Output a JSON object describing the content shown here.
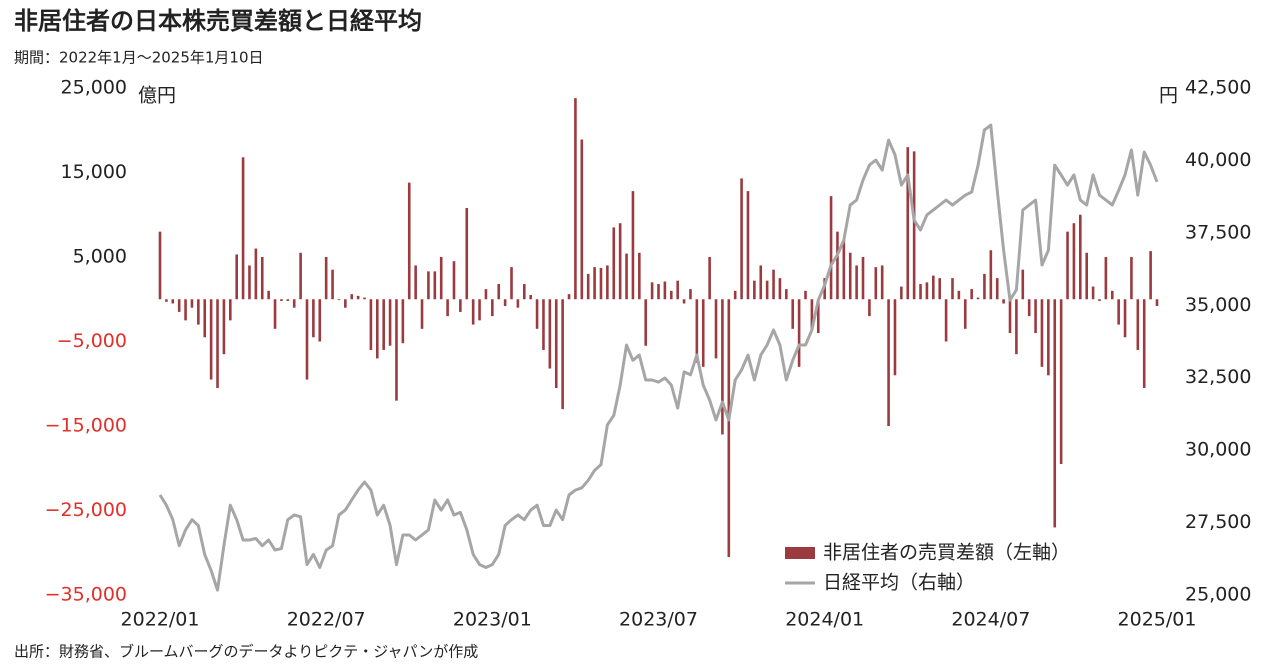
{
  "chart_data": {
    "type": "combo",
    "title": "非居住者の日本株売買差額と日経平均",
    "subtitle": "期間：2022年1月～2025年1月10日",
    "source": "出所：財務省、ブルームバーグのデータよりピクテ・ジャパンが作成",
    "y_unit": "億円",
    "y2_unit": "円",
    "categories": [
      null,
      null,
      null,
      null,
      null,
      null,
      null,
      null,
      null,
      null,
      null,
      null,
      null,
      null,
      null,
      null,
      null,
      null,
      null,
      null,
      null,
      null,
      null,
      null,
      null,
      null,
      null,
      null,
      null,
      null,
      null,
      null,
      null,
      null,
      null,
      null,
      null,
      null,
      null,
      null,
      null,
      null,
      null,
      null,
      null,
      null,
      null,
      null,
      null,
      null,
      null,
      null,
      null,
      null,
      null,
      null,
      null,
      null,
      null,
      null,
      null,
      null,
      null,
      null,
      null,
      null,
      null,
      null,
      null,
      null,
      null,
      null,
      null,
      null,
      null,
      null,
      null,
      null,
      null,
      null,
      null,
      null,
      null,
      null,
      null,
      null,
      null,
      null,
      null,
      null,
      null,
      null,
      null,
      null,
      null,
      null,
      null,
      null,
      null,
      null,
      null,
      null,
      null,
      null,
      null,
      null,
      null,
      null,
      null,
      null,
      null,
      null,
      null,
      null,
      null,
      null,
      null,
      null,
      null,
      null,
      null,
      null,
      null,
      null,
      null,
      null,
      null,
      null,
      null,
      null,
      null,
      null,
      null,
      null,
      null,
      null,
      null,
      null,
      null,
      null,
      null,
      null,
      null,
      null,
      null,
      null,
      null,
      null,
      null,
      null,
      null,
      null,
      null,
      null,
      null,
      null,
      null
    ],
    "xticks": [
      {
        "value": 0,
        "label": "2022/01"
      },
      {
        "value": 26,
        "label": "2022/07"
      },
      {
        "value": 52,
        "label": "2023/01"
      },
      {
        "value": 78,
        "label": "2023/07"
      },
      {
        "value": 104,
        "label": "2024/01"
      },
      {
        "value": 130,
        "label": "2024/07"
      },
      {
        "value": 156,
        "label": "2025/01"
      }
    ],
    "ylim": [
      -35000,
      25000
    ],
    "yticks": [
      {
        "value": 25000,
        "label": "25,000"
      },
      {
        "value": 15000,
        "label": "15,000"
      },
      {
        "value": 5000,
        "label": "5,000"
      },
      {
        "value": -5000,
        "label": "−5,000"
      },
      {
        "value": -15000,
        "label": "−15,000"
      },
      {
        "value": -25000,
        "label": "−25,000"
      },
      {
        "value": -35000,
        "label": "−35,000"
      }
    ],
    "negative_tick_color": "#e0302a",
    "y2lim": [
      25000,
      42500
    ],
    "y2ticks": [
      {
        "value": 42500,
        "label": "42,500"
      },
      {
        "value": 40000,
        "label": "40,000"
      },
      {
        "value": 37500,
        "label": "37,500"
      },
      {
        "value": 35000,
        "label": "35,000"
      },
      {
        "value": 32500,
        "label": "32,500"
      },
      {
        "value": 30000,
        "label": "30,000"
      },
      {
        "value": 27500,
        "label": "27,500"
      },
      {
        "value": 25000,
        "label": "25,000"
      }
    ],
    "legend": "lower right",
    "series": [
      {
        "name": "非居住者の売買差額（左軸）",
        "type": "bar",
        "color": "#9b3b3f",
        "values": [
          8000,
          -300,
          -500,
          -1500,
          -2500,
          -1000,
          -3000,
          -4500,
          -9500,
          -10500,
          -6500,
          -2500,
          5300,
          16800,
          4000,
          6000,
          5000,
          1000,
          -3500,
          -200,
          -200,
          -1000,
          5500,
          -9500,
          -4500,
          -5000,
          5000,
          3500,
          -100,
          -1000,
          600,
          400,
          200,
          -6000,
          -7000,
          -6000,
          -5500,
          -12000,
          -5200,
          13800,
          4000,
          -3500,
          3300,
          3300,
          5000,
          -2000,
          4500,
          -1500,
          10800,
          -3000,
          -2500,
          1200,
          -2000,
          1800,
          -800,
          3800,
          -1000,
          1800,
          500,
          -3500,
          -6000,
          -8200,
          -10500,
          -13000,
          600,
          23800,
          18900,
          3000,
          3800,
          3700,
          4000,
          8500,
          9000,
          5400,
          12800,
          5500,
          -5500,
          2000,
          1800,
          2100,
          1000,
          2200,
          -500,
          1200,
          -7500,
          -8000,
          5000,
          -7000,
          -16000,
          -30500,
          1000,
          14300,
          12800,
          2200,
          4000,
          2200,
          3500,
          2500,
          1200,
          -3500,
          -8000,
          1000,
          -3500,
          -4000,
          2500,
          12200,
          8000,
          7000,
          5500,
          4000,
          5000,
          -2000,
          3800,
          4000,
          -15000,
          -9000,
          1500,
          18000,
          17500,
          1800,
          2000,
          2800,
          2500,
          -5000,
          2500,
          1000,
          -3500,
          1200,
          200,
          3000,
          5800,
          2500,
          -500,
          -4000,
          -6500,
          3500,
          -2000,
          -4000,
          -8000,
          -9000,
          -27000,
          -19500,
          8000,
          9000,
          10000,
          5500,
          1500,
          -200,
          5000,
          1000,
          -3000,
          -4500,
          5000,
          -6000,
          -10500,
          5700,
          -800
        ]
      },
      {
        "name": "日経平均（右軸）",
        "type": "line",
        "axis": "y2",
        "color": "#a6a6a6",
        "values": [
          28450,
          28100,
          27600,
          26700,
          27250,
          27600,
          27400,
          26400,
          25850,
          25170,
          26700,
          28100,
          27600,
          26900,
          26900,
          26950,
          26700,
          26900,
          26550,
          26600,
          27600,
          27760,
          27700,
          26050,
          26400,
          25950,
          26550,
          26700,
          27760,
          27930,
          28280,
          28620,
          28900,
          28620,
          27760,
          28100,
          27400,
          26050,
          27070,
          27070,
          26900,
          27070,
          27250,
          28280,
          27930,
          28280,
          27760,
          27850,
          27250,
          26400,
          26050,
          25950,
          26050,
          26400,
          27400,
          27600,
          27760,
          27600,
          27930,
          28100,
          27400,
          27400,
          27930,
          27600,
          28450,
          28620,
          28700,
          28960,
          29300,
          29500,
          30870,
          31200,
          32250,
          33630,
          33100,
          33280,
          32420,
          32420,
          32350,
          32490,
          32250,
          31450,
          32700,
          32600,
          33280,
          32250,
          31730,
          31040,
          31660,
          31040,
          32420,
          32770,
          33280,
          32420,
          33280,
          33630,
          34150,
          33630,
          32420,
          33100,
          33630,
          33630,
          34150,
          35180,
          35700,
          36390,
          36740,
          37250,
          38460,
          38630,
          39320,
          39840,
          40010,
          39670,
          40700,
          40190,
          39150,
          39500,
          37940,
          37600,
          38120,
          38290,
          38460,
          38630,
          38460,
          38630,
          38800,
          38910,
          39840,
          41050,
          41220,
          38980,
          36900,
          35180,
          35530,
          38290,
          38460,
          38630,
          36390,
          36900,
          39840,
          39500,
          39150,
          39500,
          38630,
          38460,
          39500,
          38800,
          38630,
          38460,
          38970,
          39500,
          40360,
          38800,
          40290,
          39840,
          39260
        ]
      }
    ]
  }
}
